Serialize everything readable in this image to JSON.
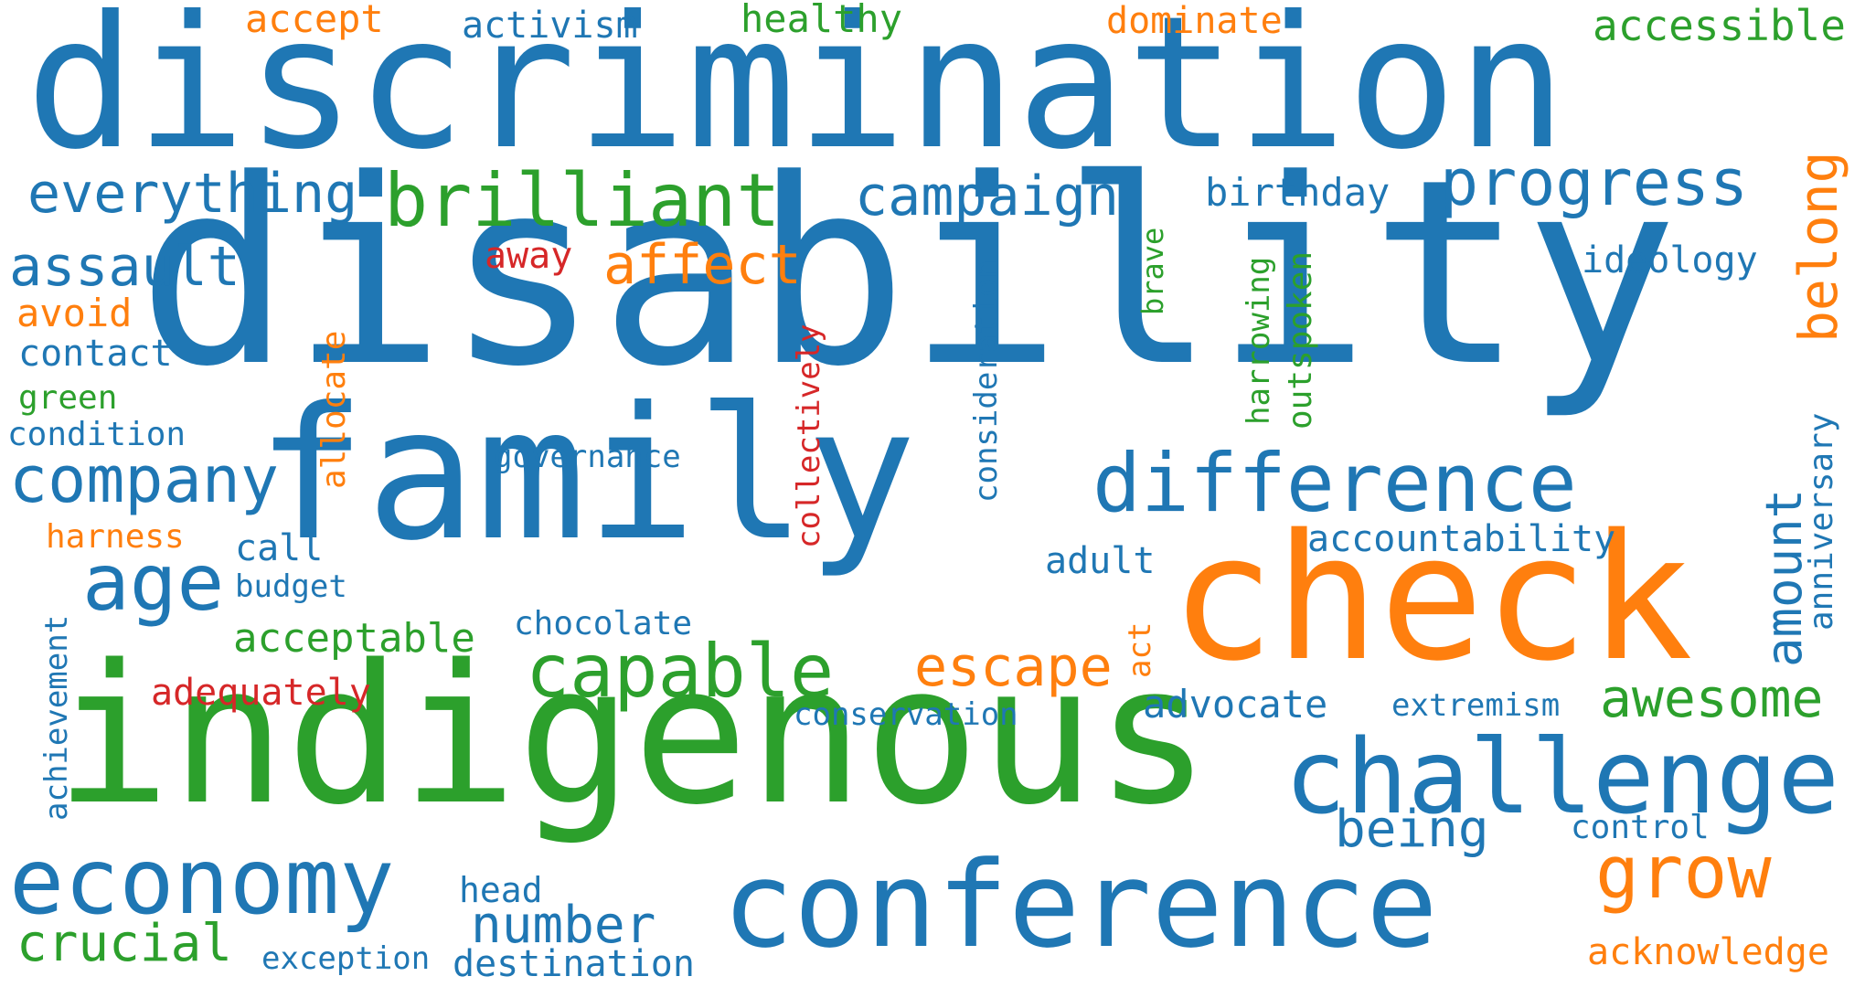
{
  "words": {
    "discrimination": "discrimination",
    "disability": "disability",
    "family": "family",
    "indigenous": "indigenous",
    "check": "check",
    "conference": "conference",
    "challenge": "challenge",
    "economy": "economy",
    "difference": "difference",
    "brilliant": "brilliant",
    "progress": "progress",
    "capable": "capable",
    "company": "company",
    "age": "age",
    "everything": "everything",
    "campaign": "campaign",
    "assault": "assault",
    "affect": "affect",
    "escape": "escape",
    "grow": "grow",
    "awesome": "awesome",
    "belong": "belong",
    "amount": "amount",
    "number": "number",
    "being": "being",
    "crucial": "crucial",
    "accessible": "accessible",
    "birthday": "birthday",
    "ideology": "ideology",
    "acceptable": "acceptable",
    "accept": "accept",
    "activism": "activism",
    "healthy": "healthy",
    "dominate": "dominate",
    "avoid": "avoid",
    "contact": "contact",
    "green": "green",
    "condition": "condition",
    "away": "away",
    "allocate": "allocate",
    "collectively": "collectively",
    "consideration": "consideration",
    "brave": "brave",
    "harrowing": "harrowing",
    "outspoken": "outspoken",
    "anniversary": "anniversary",
    "governance": "governance",
    "harness": "harness",
    "call": "call",
    "budget": "budget",
    "adult": "adult",
    "accountability": "accountability",
    "achievement": "achievement",
    "chocolate": "chocolate",
    "act": "act",
    "adequately": "adequately",
    "conservation": "conservation",
    "advocate": "advocate",
    "extremism": "extremism",
    "control": "control",
    "head": "head",
    "exception": "exception",
    "destination": "destination",
    "acknowledge": "acknowledge"
  },
  "colors": {
    "blue": "#1f77b4",
    "orange": "#ff7f0e",
    "green": "#2ca02c",
    "red": "#d62728"
  }
}
